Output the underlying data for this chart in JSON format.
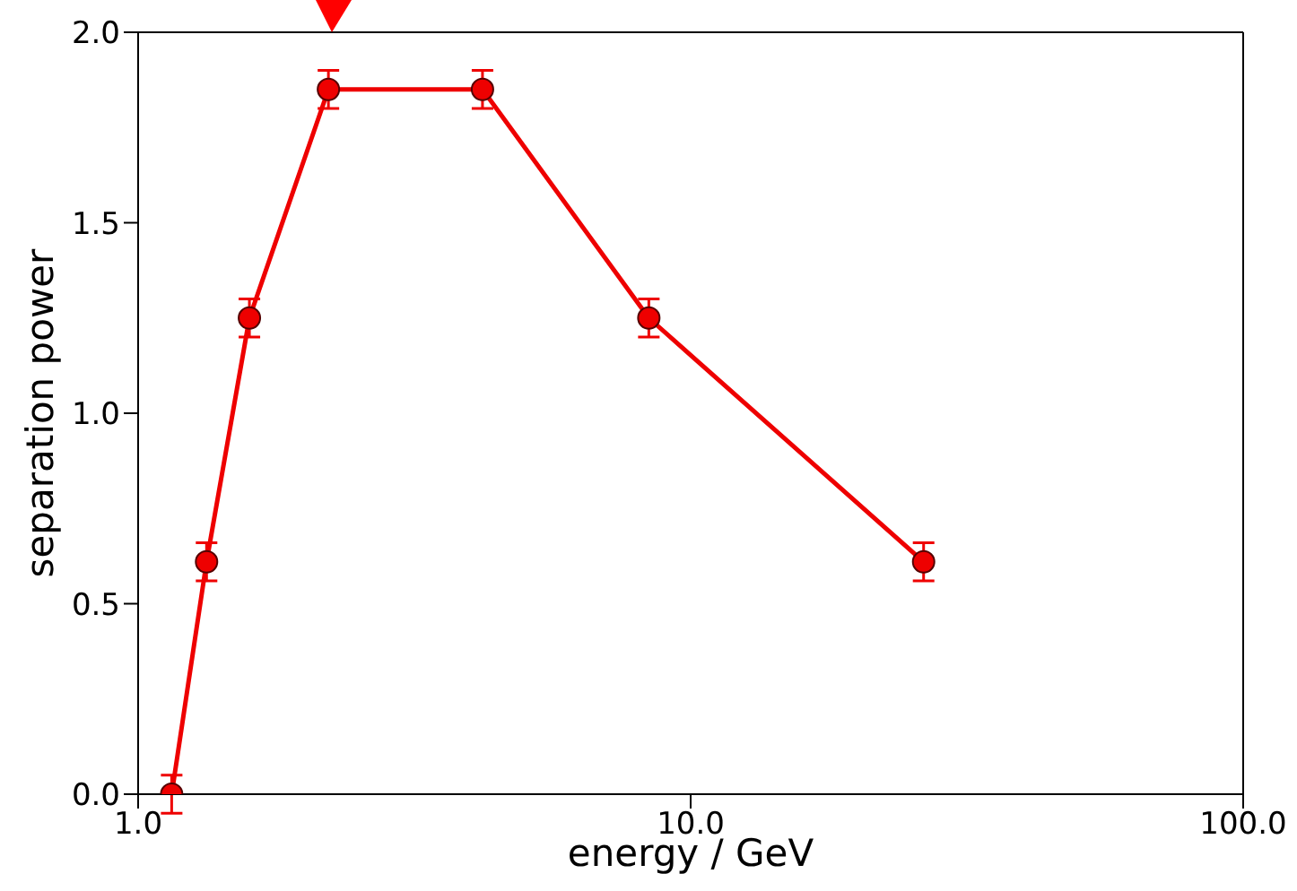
{
  "chart_data": {
    "type": "line",
    "xlabel": "energy / GeV",
    "ylabel": "separation power",
    "x": [
      1.15,
      1.33,
      1.59,
      2.21,
      4.2,
      8.4,
      26.4
    ],
    "series": [
      {
        "color": "#ee0000",
        "values": [
          0.0,
          0.61,
          1.25,
          1.85,
          1.85,
          1.25,
          0.61
        ],
        "errors": [
          0.05,
          0.05,
          0.05,
          0.05,
          0.05,
          0.05,
          0.05
        ]
      }
    ],
    "log": "x",
    "xlim": [
      1,
      100
    ],
    "xticks": [
      {
        "value": 1,
        "label": "1.0"
      },
      {
        "value": 10,
        "label": "10.0"
      },
      {
        "value": 100,
        "label": "100.0"
      }
    ],
    "ylim": [
      0,
      2
    ],
    "yticks": [
      {
        "value": 0,
        "label": "0.0"
      },
      0.5,
      {
        "value": 1,
        "label": "1.0"
      },
      1.5,
      {
        "value": 2,
        "label": "2.0"
      }
    ],
    "marker": "circle",
    "line_style": "solid"
  }
}
